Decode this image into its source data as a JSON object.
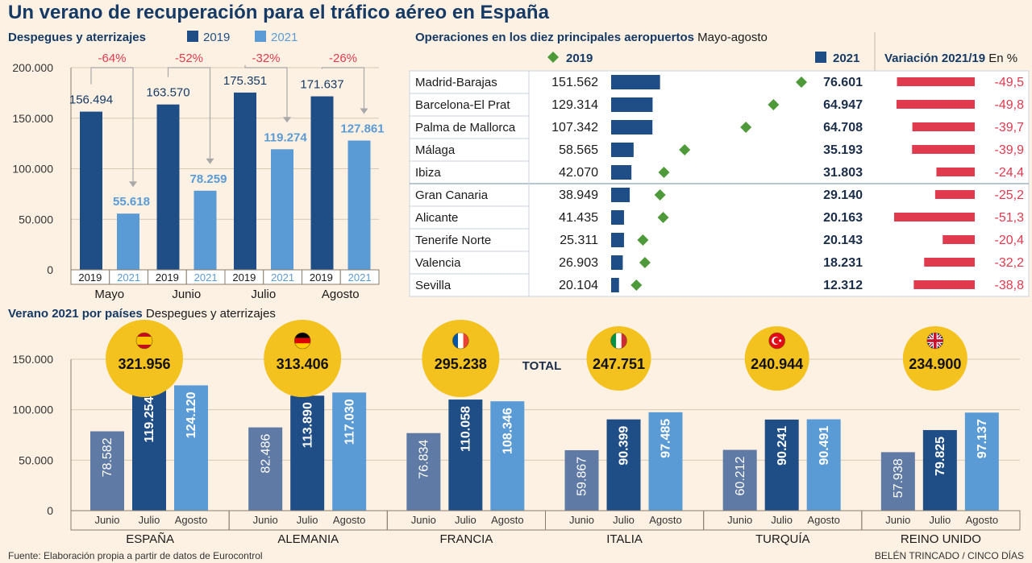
{
  "title": "Un verano de recuperación para el tráfico aéreo en España",
  "source": "Fuente: Elaboración propia a partir de datos de Eurocontrol",
  "credit": "BELÉN TRINCADO / CINCO DÍAS",
  "colors": {
    "c2019": "#1f4e86",
    "c2021": "#5b9bd5",
    "junio": "#5f7aa5",
    "red": "#e03a4e",
    "green": "#4e9a3a",
    "yellow": "#f4c21f"
  },
  "chart_data": [
    {
      "type": "bar",
      "title": "Despegues y aterrizajes",
      "categories": [
        "Mayo",
        "Junio",
        "Julio",
        "Agosto"
      ],
      "series": [
        {
          "name": "2019",
          "values": [
            156494,
            163570,
            175351,
            171637
          ],
          "labels": [
            "156.494",
            "163.570",
            "175.351",
            "171.637"
          ]
        },
        {
          "name": "2021",
          "values": [
            55618,
            78259,
            119274,
            127861
          ],
          "labels": [
            "55.618",
            "78.259",
            "119.274",
            "127.861"
          ]
        }
      ],
      "bar_tick_labels": [
        "2019",
        "2021"
      ],
      "changes": [
        "-64%",
        "-52%",
        "-32%",
        "-26%"
      ],
      "ylim": [
        0,
        200000
      ],
      "yticks": [
        0,
        50000,
        100000,
        150000,
        200000
      ],
      "ytick_labels": [
        "0",
        "50.000",
        "100.000",
        "150.000",
        "200.000"
      ],
      "legend_position": "top"
    },
    {
      "type": "bar",
      "title": "Operaciones en los diez principales aeropuertos",
      "subtitle": "Mayo-agosto",
      "legend": [
        "2019",
        "2021"
      ],
      "change_header": "Variación 2021/19",
      "change_unit": "En %",
      "rows": [
        {
          "name": "Madrid-Barajas",
          "v2019": 151562,
          "v2021": 76601,
          "l2019": "151.562",
          "l2021": "76.601",
          "var": -49.5,
          "lvar": "-49,5"
        },
        {
          "name": "Barcelona-El Prat",
          "v2019": 129314,
          "v2021": 64947,
          "l2019": "129.314",
          "l2021": "64.947",
          "var": -49.8,
          "lvar": "-49,8"
        },
        {
          "name": "Palma de Mallorca",
          "v2019": 107342,
          "v2021": 64708,
          "l2019": "107.342",
          "l2021": "64.708",
          "var": -39.7,
          "lvar": "-39,7"
        },
        {
          "name": "Málaga",
          "v2019": 58565,
          "v2021": 35193,
          "l2019": "58.565",
          "l2021": "35.193",
          "var": -39.9,
          "lvar": "-39,9"
        },
        {
          "name": "Ibiza",
          "v2019": 42070,
          "v2021": 31803,
          "l2019": "42.070",
          "l2021": "31.803",
          "var": -24.4,
          "lvar": "-24,4"
        },
        {
          "name": "Gran Canaria",
          "v2019": 38949,
          "v2021": 29140,
          "l2019": "38.949",
          "l2021": "29.140",
          "var": -25.2,
          "lvar": "-25,2"
        },
        {
          "name": "Alicante",
          "v2019": 41435,
          "v2021": 20163,
          "l2019": "41.435",
          "l2021": "20.163",
          "var": -51.3,
          "lvar": "-51,3"
        },
        {
          "name": "Tenerife Norte",
          "v2019": 25311,
          "v2021": 20143,
          "l2019": "25.311",
          "l2021": "20.143",
          "var": -20.4,
          "lvar": "-20,4"
        },
        {
          "name": "Valencia",
          "v2019": 26903,
          "v2021": 18231,
          "l2019": "26.903",
          "l2021": "18.231",
          "var": -32.2,
          "lvar": "-32,2"
        },
        {
          "name": "Sevilla",
          "v2019": 20104,
          "v2021": 12312,
          "l2019": "20.104",
          "l2021": "12.312",
          "var": -38.8,
          "lvar": "-38,8"
        }
      ]
    },
    {
      "type": "bar",
      "title": "Verano 2021 por países",
      "subtitle": "Despegues y aterrizajes",
      "total_label": "TOTAL",
      "months": [
        "Junio",
        "Julio",
        "Agosto"
      ],
      "ylim": [
        0,
        150000
      ],
      "yticks": [
        0,
        50000,
        100000,
        150000
      ],
      "ytick_labels": [
        "0",
        "50.000",
        "100.000",
        "150.000"
      ],
      "countries": [
        {
          "name": "ESPAÑA",
          "flag": "spain-flag",
          "total": "321.956",
          "values": [
            78582,
            119254,
            124120
          ],
          "labels": [
            "78.582",
            "119.254",
            "124.120"
          ]
        },
        {
          "name": "ALEMANIA",
          "flag": "germany-flag",
          "total": "313.406",
          "values": [
            82486,
            113890,
            117030
          ],
          "labels": [
            "82.486",
            "113.890",
            "117.030"
          ]
        },
        {
          "name": "FRANCIA",
          "flag": "france-flag",
          "total": "295.238",
          "values": [
            76834,
            110058,
            108346
          ],
          "labels": [
            "76.834",
            "110.058",
            "108.346"
          ]
        },
        {
          "name": "ITALIA",
          "flag": "italy-flag",
          "total": "247.751",
          "values": [
            59867,
            90399,
            97485
          ],
          "labels": [
            "59.867",
            "90.399",
            "97.485"
          ]
        },
        {
          "name": "TURQUÍA",
          "flag": "turkey-flag",
          "total": "240.944",
          "values": [
            60212,
            90241,
            90491
          ],
          "labels": [
            "60.212",
            "90.241",
            "90.491"
          ]
        },
        {
          "name": "REINO UNIDO",
          "flag": "uk-flag",
          "total": "234.900",
          "values": [
            57938,
            79825,
            97137
          ],
          "labels": [
            "57.938",
            "79.825",
            "97.137"
          ]
        }
      ]
    }
  ]
}
